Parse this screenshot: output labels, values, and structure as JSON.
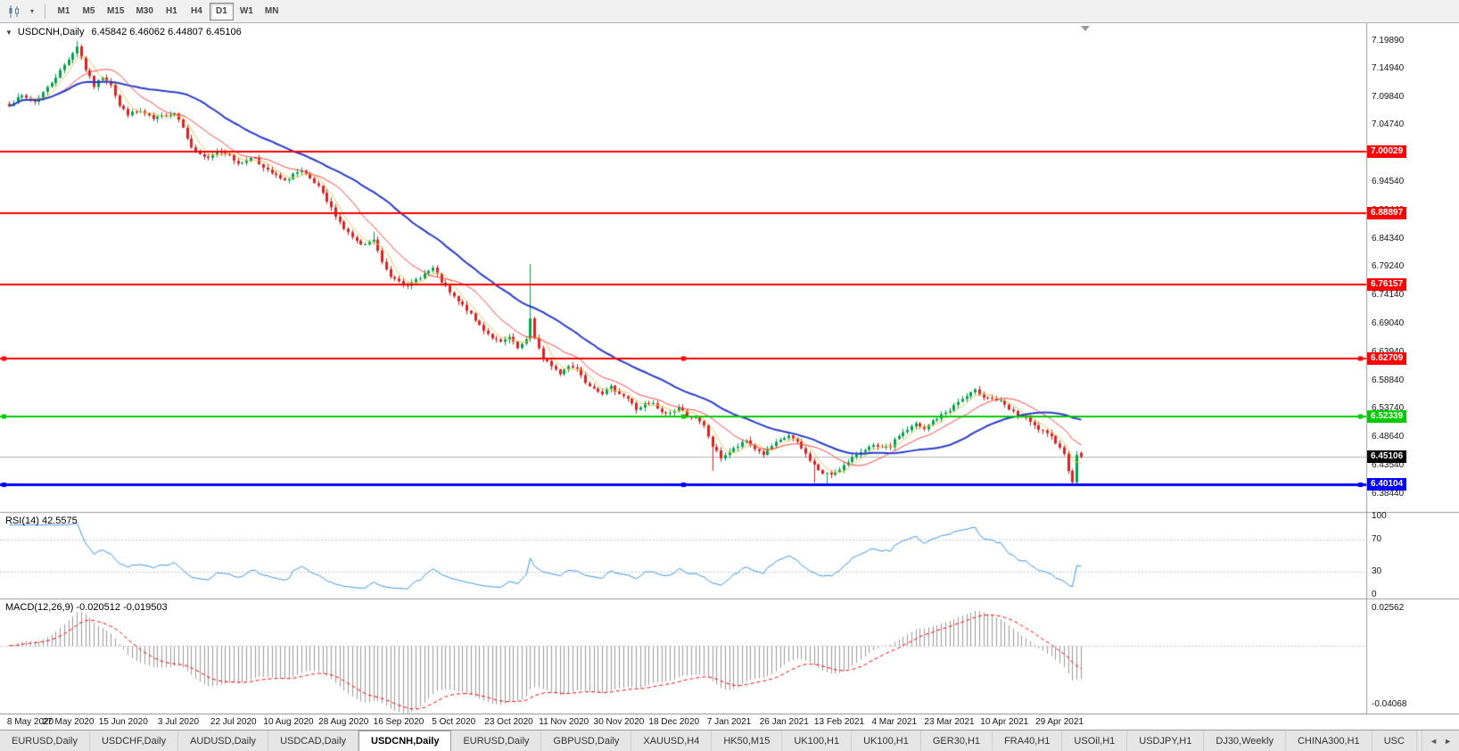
{
  "toolbar": {
    "chart_type_icon": "candlestick-chart",
    "dropdown_icon": "▾",
    "timeframes": [
      {
        "label": "M1",
        "active": false
      },
      {
        "label": "M5",
        "active": false
      },
      {
        "label": "M15",
        "active": false
      },
      {
        "label": "M30",
        "active": false
      },
      {
        "label": "H1",
        "active": false
      },
      {
        "label": "H4",
        "active": false
      },
      {
        "label": "D1",
        "active": true
      },
      {
        "label": "W1",
        "active": false
      },
      {
        "label": "MN",
        "active": false
      }
    ]
  },
  "chart_header": {
    "collapse_icon": "▼",
    "symbol_period": "USDCNH,Daily",
    "ohlc_text": "6.45842 6.46062 6.44807 6.45106"
  },
  "indicators": {
    "rsi_label": "RSI(14) 42.5575",
    "macd_label": "MACD(12,26,9) -0.020512 -0.019503"
  },
  "chart_data": {
    "type": "candlestick",
    "symbol": "USDCNH",
    "period": "Daily",
    "current_ohlc": {
      "open": 6.45842,
      "high": 6.46062,
      "low": 6.44807,
      "close": 6.45106
    },
    "ylim": [
      6.352,
      7.231
    ],
    "price_ticks": [
      "7.19890",
      "7.14940",
      "7.09840",
      "7.04740",
      "6.99640",
      "6.94540",
      "6.89440",
      "6.84340",
      "6.79240",
      "6.74140",
      "6.69040",
      "6.63940",
      "6.58840",
      "6.53740",
      "6.48640",
      "6.43540",
      "6.38440"
    ],
    "x_labels": [
      "8 May 2020",
      "27 May 2020",
      "15 Jun 2020",
      "3 Jul 2020",
      "22 Jul 2020",
      "10 Aug 2020",
      "28 Aug 2020",
      "16 Sep 2020",
      "5 Oct 2020",
      "23 Oct 2020",
      "11 Nov 2020",
      "30 Nov 2020",
      "18 Dec 2020",
      "7 Jan 2021",
      "26 Jan 2021",
      "13 Feb 2021",
      "4 Mar 2021",
      "23 Mar 2021",
      "10 Apr 2021",
      "29 Apr 2021"
    ],
    "bars_per_label": 13,
    "first_label_bar": 1,
    "num_candles": 254,
    "colors": {
      "up": "#00a24c",
      "down": "#e01f1f",
      "ma_fast": "#e6c84f",
      "ma_mid": "#ff4040",
      "ma_slow": "#2a3cc8",
      "bid_line": "#b4b4b4",
      "bid_box": "#000000"
    },
    "moving_averages": [
      {
        "period": 5,
        "color_key": "ma_fast"
      },
      {
        "period": 13,
        "color_key": "ma_mid"
      },
      {
        "period": 34,
        "color_key": "ma_slow"
      }
    ],
    "hlines": [
      {
        "price": 7.00029,
        "label": "7.00029",
        "color": "#ff0000",
        "width": 2,
        "selected": false
      },
      {
        "price": 6.88897,
        "label": "6.88897",
        "color": "#ff0000",
        "width": 2,
        "selected": false
      },
      {
        "price": 6.76157,
        "label": "6.76157",
        "color": "#ff0000",
        "width": 2,
        "selected": false
      },
      {
        "price": 6.62709,
        "label": "6.62709",
        "color": "#ff0000",
        "width": 2,
        "selected": true
      },
      {
        "price": 6.52339,
        "label": "6.52339",
        "color": "#00cc00",
        "width": 2,
        "selected": true
      },
      {
        "price": 6.40104,
        "label": "6.40104",
        "color": "#0000ff",
        "width": 3,
        "selected": true
      }
    ],
    "bid": {
      "price": 6.45106,
      "label": "6.45106"
    },
    "price_anchors": [
      [
        0,
        7.085
      ],
      [
        3,
        7.1
      ],
      [
        6,
        7.09
      ],
      [
        9,
        7.115
      ],
      [
        12,
        7.145
      ],
      [
        15,
        7.178
      ],
      [
        16,
        7.19
      ],
      [
        18,
        7.148
      ],
      [
        20,
        7.118
      ],
      [
        22,
        7.135
      ],
      [
        24,
        7.122
      ],
      [
        26,
        7.082
      ],
      [
        28,
        7.068
      ],
      [
        31,
        7.072
      ],
      [
        34,
        7.058
      ],
      [
        37,
        7.066
      ],
      [
        39,
        7.07
      ],
      [
        41,
        7.046
      ],
      [
        43,
        7.006
      ],
      [
        45,
        6.996
      ],
      [
        47,
        6.986
      ],
      [
        49,
        7.0
      ],
      [
        52,
        6.996
      ],
      [
        54,
        6.976
      ],
      [
        56,
        6.986
      ],
      [
        58,
        6.99
      ],
      [
        60,
        6.97
      ],
      [
        63,
        6.956
      ],
      [
        65,
        6.946
      ],
      [
        67,
        6.96
      ],
      [
        69,
        6.964
      ],
      [
        71,
        6.95
      ],
      [
        73,
        6.936
      ],
      [
        75,
        6.91
      ],
      [
        77,
        6.886
      ],
      [
        79,
        6.862
      ],
      [
        81,
        6.846
      ],
      [
        83,
        6.83
      ],
      [
        85,
        6.836
      ],
      [
        86,
        6.842
      ],
      [
        88,
        6.8
      ],
      [
        90,
        6.776
      ],
      [
        92,
        6.77
      ],
      [
        94,
        6.756
      ],
      [
        96,
        6.77
      ],
      [
        98,
        6.78
      ],
      [
        100,
        6.79
      ],
      [
        102,
        6.766
      ],
      [
        104,
        6.746
      ],
      [
        106,
        6.73
      ],
      [
        108,
        6.716
      ],
      [
        110,
        6.696
      ],
      [
        112,
        6.68
      ],
      [
        114,
        6.666
      ],
      [
        116,
        6.656
      ],
      [
        118,
        6.666
      ],
      [
        120,
        6.646
      ],
      [
        122,
        6.66
      ],
      [
        123,
        6.7
      ],
      [
        124,
        6.666
      ],
      [
        126,
        6.626
      ],
      [
        128,
        6.616
      ],
      [
        130,
        6.6
      ],
      [
        132,
        6.616
      ],
      [
        134,
        6.61
      ],
      [
        136,
        6.586
      ],
      [
        138,
        6.576
      ],
      [
        140,
        6.566
      ],
      [
        142,
        6.576
      ],
      [
        144,
        6.566
      ],
      [
        146,
        6.556
      ],
      [
        148,
        6.536
      ],
      [
        150,
        6.546
      ],
      [
        152,
        6.546
      ],
      [
        154,
        6.53
      ],
      [
        156,
        6.53
      ],
      [
        158,
        6.54
      ],
      [
        160,
        6.526
      ],
      [
        162,
        6.52
      ],
      [
        164,
        6.506
      ],
      [
        166,
        6.47
      ],
      [
        168,
        6.45
      ],
      [
        170,
        6.46
      ],
      [
        172,
        6.47
      ],
      [
        174,
        6.48
      ],
      [
        176,
        6.466
      ],
      [
        178,
        6.456
      ],
      [
        180,
        6.47
      ],
      [
        182,
        6.48
      ],
      [
        184,
        6.49
      ],
      [
        186,
        6.476
      ],
      [
        188,
        6.456
      ],
      [
        190,
        6.436
      ],
      [
        192,
        6.42
      ],
      [
        194,
        6.42
      ],
      [
        196,
        6.43
      ],
      [
        198,
        6.44
      ],
      [
        200,
        6.456
      ],
      [
        202,
        6.466
      ],
      [
        204,
        6.47
      ],
      [
        206,
        6.466
      ],
      [
        208,
        6.47
      ],
      [
        210,
        6.49
      ],
      [
        212,
        6.5
      ],
      [
        214,
        6.51
      ],
      [
        216,
        6.5
      ],
      [
        218,
        6.516
      ],
      [
        220,
        6.526
      ],
      [
        222,
        6.536
      ],
      [
        224,
        6.55
      ],
      [
        226,
        6.56
      ],
      [
        228,
        6.57
      ],
      [
        230,
        6.56
      ],
      [
        232,
        6.556
      ],
      [
        234,
        6.55
      ],
      [
        236,
        6.536
      ],
      [
        238,
        6.526
      ],
      [
        240,
        6.52
      ],
      [
        242,
        6.506
      ],
      [
        244,
        6.496
      ],
      [
        246,
        6.486
      ],
      [
        248,
        6.47
      ],
      [
        249,
        6.455
      ],
      [
        250,
        6.428
      ],
      [
        251,
        6.408
      ],
      [
        252,
        6.452
      ],
      [
        253,
        6.451
      ]
    ],
    "candle_overrides": [
      {
        "i": 16,
        "h": 7.1989
      },
      {
        "i": 86,
        "h": 6.856
      },
      {
        "i": 123,
        "h": 6.798
      },
      {
        "i": 166,
        "l": 6.426
      },
      {
        "i": 190,
        "l": 6.405
      },
      {
        "i": 193,
        "l": 6.401
      },
      {
        "i": 251,
        "l": 6.402
      },
      {
        "i": 253,
        "o": 6.45842,
        "h": 6.46062,
        "l": 6.44807,
        "c": 6.45106
      }
    ],
    "rsi": {
      "period": 14,
      "value": 42.5575,
      "levels": [
        70,
        30
      ],
      "scale_labels": [
        {
          "v": 100,
          "t": "100"
        },
        {
          "v": 70,
          "t": "70"
        },
        {
          "v": 30,
          "t": "30"
        },
        {
          "v": 0,
          "t": "0"
        }
      ],
      "color": "#3b96e8"
    },
    "macd": {
      "fast": 12,
      "slow": 26,
      "signal_period": 9,
      "values": [
        -0.020512,
        -0.019503
      ],
      "ylim": [
        -0.047,
        0.032
      ],
      "scale_labels": [
        {
          "v": 0.02562,
          "t": "0.02562"
        },
        {
          "v": -0.04068,
          "t": "-0.04068"
        }
      ],
      "bar_color": "#9a9a9a",
      "signal_color": "#ff0000"
    }
  },
  "tabbar": {
    "scroll_left_icon": "◄",
    "scroll_right_icon": "►",
    "tabs": [
      {
        "label": "EURUSD,Daily",
        "active": false
      },
      {
        "label": "USDCHF,Daily",
        "active": false
      },
      {
        "label": "AUDUSD,Daily",
        "active": false
      },
      {
        "label": "USDCAD,Daily",
        "active": false
      },
      {
        "label": "USDCNH,Daily",
        "active": true
      },
      {
        "label": "EURUSD,Daily",
        "active": false
      },
      {
        "label": "GBPUSD,Daily",
        "active": false
      },
      {
        "label": "XAUUSD,H4",
        "active": false
      },
      {
        "label": "HK50,M15",
        "active": false
      },
      {
        "label": "UK100,H1",
        "active": false
      },
      {
        "label": "UK100,H1",
        "active": false
      },
      {
        "label": "GER30,H1",
        "active": false
      },
      {
        "label": "FRA40,H1",
        "active": false
      },
      {
        "label": "USOil,H1",
        "active": false
      },
      {
        "label": "USDJPY,H1",
        "active": false
      },
      {
        "label": "DJ30,Weekly",
        "active": false
      },
      {
        "label": "CHINA300,H1",
        "active": false
      },
      {
        "label": "USC",
        "active": false
      }
    ]
  }
}
